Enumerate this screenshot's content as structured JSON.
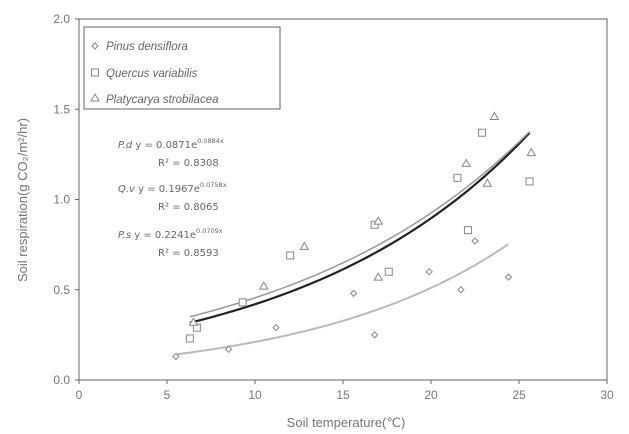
{
  "chart_data": {
    "type": "scatter",
    "xlabel": "Soil temperature(℃)",
    "ylabel": "Soil respiration(g CO₂/m²/hr)",
    "xlim": [
      0,
      30
    ],
    "ylim": [
      0.0,
      2.0
    ],
    "xticks": [
      "0",
      "5",
      "10",
      "15",
      "20",
      "25",
      "30"
    ],
    "yticks": [
      "0.0",
      "0.5",
      "1.0",
      "1.5",
      "2.0"
    ],
    "grid": false,
    "legend": {
      "position": "top-left",
      "entries": [
        "Pinus densiflora",
        "Quercus variabilis",
        "Platycarya strobilacea"
      ]
    },
    "colors": {
      "pinus_curve": "#bbbbbb",
      "quercus_curve": "#222222",
      "platycarya_curve": "#999999",
      "markers": "#888888"
    },
    "series": [
      {
        "name": "Pinus densiflora",
        "marker": "diamond",
        "points": [
          [
            5.5,
            0.13
          ],
          [
            8.5,
            0.17
          ],
          [
            11.2,
            0.29
          ],
          [
            15.6,
            0.48
          ],
          [
            16.8,
            0.25
          ],
          [
            19.9,
            0.6
          ],
          [
            21.7,
            0.5
          ],
          [
            22.5,
            0.77
          ],
          [
            24.4,
            0.57
          ]
        ],
        "fit": {
          "a": 0.0871,
          "b": 0.0884,
          "x_range": [
            5.5,
            24.4
          ]
        }
      },
      {
        "name": "Quercus variabilis",
        "marker": "square",
        "points": [
          [
            6.3,
            0.23
          ],
          [
            6.7,
            0.29
          ],
          [
            9.3,
            0.43
          ],
          [
            12.0,
            0.69
          ],
          [
            16.8,
            0.86
          ],
          [
            17.6,
            0.6
          ],
          [
            21.5,
            1.12
          ],
          [
            22.1,
            0.83
          ],
          [
            22.9,
            1.37
          ],
          [
            25.6,
            1.1
          ]
        ],
        "fit": {
          "a": 0.1967,
          "b": 0.0758,
          "x_range": [
            6.3,
            25.6
          ]
        }
      },
      {
        "name": "Platycarya strobilacea",
        "marker": "triangle",
        "points": [
          [
            6.5,
            0.32
          ],
          [
            10.5,
            0.52
          ],
          [
            12.8,
            0.74
          ],
          [
            17.0,
            0.88
          ],
          [
            17.0,
            0.57
          ],
          [
            22.0,
            1.2
          ],
          [
            23.2,
            1.09
          ],
          [
            23.6,
            1.46
          ],
          [
            25.7,
            1.26
          ]
        ],
        "fit": {
          "a": 0.2241,
          "b": 0.0709,
          "x_range": [
            6.3,
            25.6
          ]
        }
      }
    ],
    "annotations": [
      {
        "label": "P.d",
        "eq_base": "y = 0.0871e",
        "eq_exp": "0.0884x",
        "r2_label": "R² = 0.8308"
      },
      {
        "label": "Q.v",
        "eq_base": "y = 0.1967e",
        "eq_exp": "0.0758x",
        "r2_label": "R² = 0.8065"
      },
      {
        "label": "P.s",
        "eq_base": "y = 0.2241e",
        "eq_exp": "0.0709x",
        "r2_label": "R² = 0.8593"
      }
    ]
  }
}
